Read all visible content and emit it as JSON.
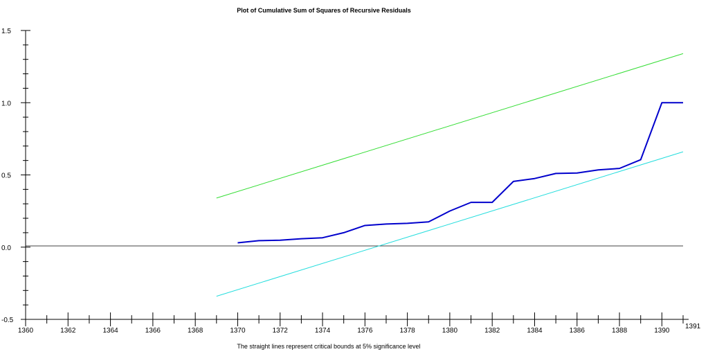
{
  "chart_data": {
    "type": "line",
    "title": "Plot of Cumulative Sum of Squares of Recursive Residuals",
    "note": "The straight lines represent critical bounds at 5% significance level",
    "xlim": [
      1360,
      1391
    ],
    "ylim": [
      -0.5,
      1.5
    ],
    "x_ticks": [
      1360,
      1362,
      1364,
      1366,
      1368,
      1370,
      1372,
      1374,
      1376,
      1378,
      1380,
      1382,
      1384,
      1386,
      1388,
      1390,
      1391
    ],
    "y_ticks": [
      "-0.5",
      "0.0",
      "0.5",
      "1.0",
      "1.5"
    ],
    "reference_line_y": 0,
    "series": [
      {
        "color": "#0000cc",
        "x": [
          1370,
          1371,
          1372,
          1373,
          1374,
          1375,
          1376,
          1377,
          1378,
          1379,
          1380,
          1381,
          1382,
          1383,
          1384,
          1385,
          1386,
          1387,
          1388,
          1389,
          1390,
          1391
        ],
        "y": [
          0.03,
          0.045,
          0.048,
          0.058,
          0.065,
          0.1,
          0.15,
          0.16,
          0.165,
          0.175,
          0.25,
          0.31,
          0.31,
          0.455,
          0.475,
          0.51,
          0.513,
          0.535,
          0.545,
          0.605,
          1.0,
          1.0
        ]
      },
      {
        "color": "#33dd33",
        "x": [
          1369,
          1391
        ],
        "y": [
          0.34,
          1.34
        ]
      },
      {
        "color": "#22dddd",
        "x": [
          1369,
          1391
        ],
        "y": [
          -0.34,
          0.66
        ]
      }
    ]
  }
}
